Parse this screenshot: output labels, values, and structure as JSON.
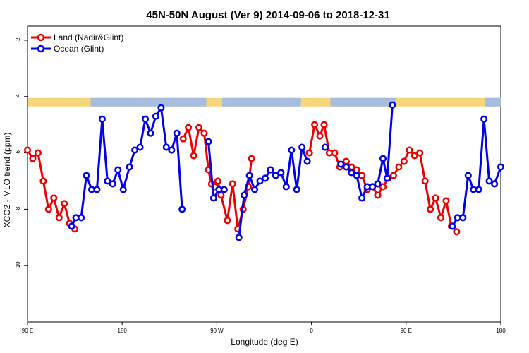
{
  "chart_data": {
    "type": "line",
    "title": "45N-50N August (Ver 9)   2014-09-06 to 2018-12-31",
    "xlabel": "Longitude (deg E)",
    "ylabel": "XCO2 - MLO trend (ppm)",
    "x_axis": {
      "range": [
        90,
        450
      ],
      "ticks": [
        {
          "value": 90,
          "label": "90 E"
        },
        {
          "value": 180,
          "label": "180"
        },
        {
          "value": 270,
          "label": "90 W"
        },
        {
          "value": 360,
          "label": "0"
        },
        {
          "value": 450,
          "label": "90 E"
        },
        {
          "value": 540,
          "label": "180"
        }
      ]
    },
    "y_axis": {
      "range": [
        -12,
        -1.5
      ],
      "ticks": [
        -2,
        -4,
        -6,
        -8,
        -10
      ]
    },
    "xlim": [
      90,
      540
    ],
    "legend": {
      "position": "top-left"
    },
    "land_ocean_band": {
      "y_range": [
        -4.35,
        -4.05
      ],
      "land_color": "#f5d67a",
      "ocean_color": "#a7bde0"
    },
    "series": [
      {
        "name": "Land (Nadir&Glint)",
        "color": "#ee0000",
        "segments": [
          [
            [
              90,
              -5.9
            ],
            [
              95,
              -6.2
            ],
            [
              100,
              -6.0
            ],
            [
              105,
              -7.0
            ],
            [
              110,
              -8.0
            ],
            [
              115,
              -7.6
            ],
            [
              120,
              -8.3
            ],
            [
              125,
              -7.8
            ],
            [
              130,
              -8.5
            ],
            [
              135,
              -8.7
            ]
          ],
          [
            [
              238,
              -5.5
            ],
            [
              243,
              -5.1
            ],
            [
              248,
              -6.1
            ],
            [
              253,
              -5.1
            ],
            [
              258,
              -5.3
            ],
            [
              262,
              -6.6
            ],
            [
              265,
              -7.1
            ],
            [
              268,
              -7.2
            ],
            [
              271,
              -7.0
            ],
            [
              274,
              -7.5
            ],
            [
              280,
              -8.4
            ],
            [
              285,
              -7.1
            ],
            [
              290,
              -8.7
            ],
            [
              295,
              -8.0
            ],
            [
              300,
              -7.2
            ],
            [
              303,
              -6.2
            ]
          ],
          [
            [
              358,
              -6.0
            ],
            [
              363,
              -5.0
            ],
            [
              368,
              -5.4
            ],
            [
              372,
              -5.0
            ],
            [
              377,
              -6.0
            ],
            [
              382,
              -6.0
            ],
            [
              387,
              -6.5
            ],
            [
              393,
              -6.3
            ],
            [
              398,
              -6.5
            ],
            [
              403,
              -6.6
            ],
            [
              408,
              -6.8
            ],
            [
              413,
              -7.3
            ],
            [
              418,
              -7.2
            ],
            [
              423,
              -7.5
            ],
            [
              428,
              -7.2
            ],
            [
              433,
              -6.9
            ],
            [
              438,
              -6.8
            ],
            [
              443,
              -6.5
            ],
            [
              448,
              -6.3
            ],
            [
              453,
              -5.9
            ],
            [
              458,
              -6.1
            ],
            [
              463,
              -6.0
            ],
            [
              468,
              -7.0
            ],
            [
              473,
              -8.0
            ],
            [
              478,
              -7.6
            ],
            [
              483,
              -8.3
            ],
            [
              488,
              -7.7
            ],
            [
              493,
              -8.6
            ],
            [
              498,
              -8.8
            ]
          ]
        ]
      },
      {
        "name": "Ocean (Glint)",
        "color": "#0000ee",
        "segments": [
          [
            [
              132,
              -8.6
            ],
            [
              136,
              -8.3
            ],
            [
              141,
              -8.3
            ],
            [
              146,
              -6.8
            ],
            [
              151,
              -7.3
            ],
            [
              156,
              -7.3
            ],
            [
              161,
              -4.8
            ],
            [
              166,
              -7.0
            ],
            [
              171,
              -7.1
            ],
            [
              176,
              -6.6
            ],
            [
              181,
              -7.3
            ],
            [
              187,
              -6.5
            ],
            [
              192,
              -5.9
            ],
            [
              197,
              -5.8
            ],
            [
              202,
              -4.8
            ],
            [
              207,
              -5.3
            ],
            [
              212,
              -4.7
            ],
            [
              217,
              -4.4
            ],
            [
              222,
              -5.8
            ],
            [
              227,
              -5.9
            ],
            [
              232,
              -5.3
            ],
            [
              237,
              -8.0
            ]
          ],
          [
            [
              262,
              -5.6
            ],
            [
              267,
              -7.6
            ],
            [
              272,
              -7.3
            ],
            [
              277,
              -7.3
            ]
          ],
          [
            [
              291,
              -9.0
            ],
            [
              296,
              -7.5
            ],
            [
              301,
              -6.8
            ],
            [
              306,
              -7.3
            ],
            [
              311,
              -7.0
            ],
            [
              316,
              -6.9
            ],
            [
              321,
              -6.6
            ],
            [
              326,
              -6.8
            ],
            [
              331,
              -6.7
            ],
            [
              336,
              -7.2
            ],
            [
              341,
              -5.9
            ],
            [
              346,
              -7.3
            ],
            [
              351,
              -5.8
            ],
            [
              356,
              -6.3
            ]
          ],
          [
            [
              373,
              -5.8
            ]
          ],
          [
            [
              388,
              -6.4
            ],
            [
              393,
              -6.5
            ],
            [
              398,
              -6.7
            ],
            [
              403,
              -6.8
            ],
            [
              408,
              -7.6
            ],
            [
              413,
              -7.2
            ]
          ],
          [
            [
              418,
              -7.2
            ],
            [
              423,
              -7.1
            ],
            [
              428,
              -6.2
            ],
            [
              432,
              -6.9
            ],
            [
              437,
              -4.3
            ]
          ],
          [
            [
              494,
              -8.6
            ],
            [
              499,
              -8.3
            ],
            [
              504,
              -8.3
            ],
            [
              509,
              -6.8
            ],
            [
              514,
              -7.3
            ],
            [
              519,
              -7.3
            ],
            [
              524,
              -4.8
            ],
            [
              529,
              -7.0
            ],
            [
              534,
              -7.1
            ],
            [
              540,
              -6.5
            ]
          ]
        ]
      }
    ]
  }
}
